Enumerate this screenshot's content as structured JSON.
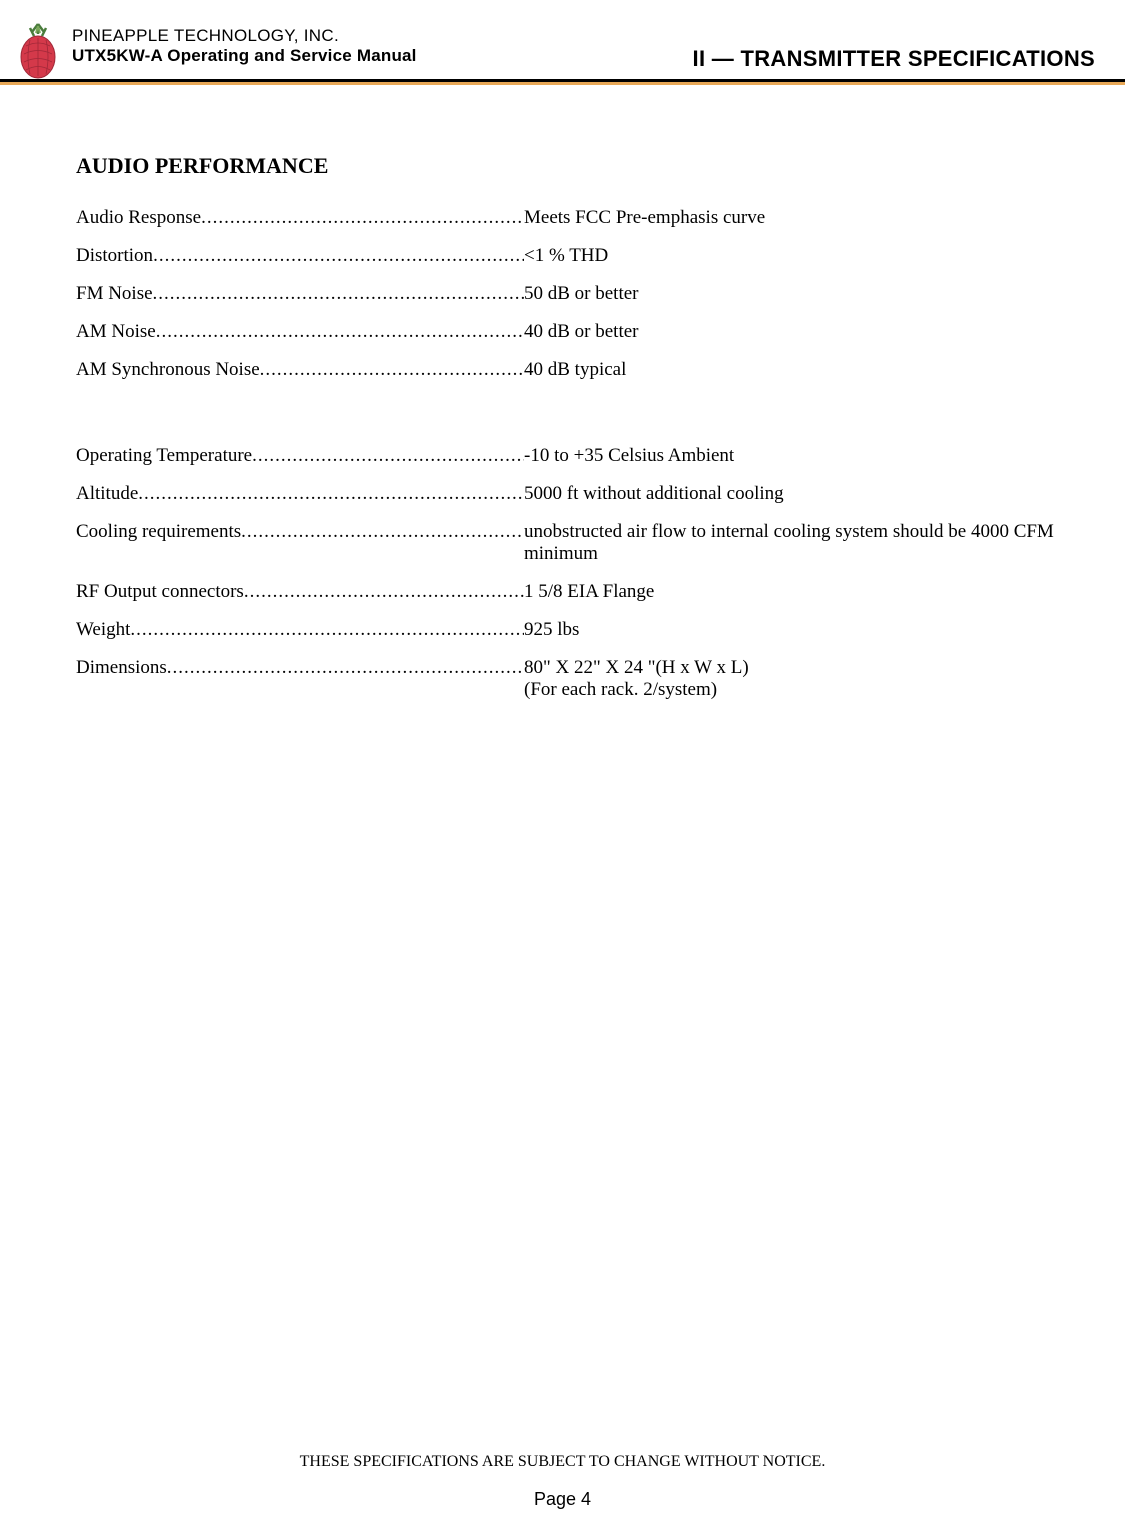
{
  "header": {
    "company": "PINEAPPLE TECHNOLOGY, INC.",
    "manual": "UTX5KW-A Operating and Service Manual",
    "chapter": "II — TRANSMITTER SPECIFICATIONS"
  },
  "section_title": "AUDIO PERFORMANCE",
  "specs_group1": [
    {
      "label": "Audio Response",
      "value": "Meets FCC Pre-emphasis curve"
    },
    {
      "label": "Distortion",
      "value": "<1 % THD"
    },
    {
      "label": "FM Noise",
      "value": "50 dB or better"
    },
    {
      "label": "AM Noise",
      "value": "40 dB or better"
    },
    {
      "label": "AM Synchronous Noise",
      "value": "40 dB typical"
    }
  ],
  "specs_group2": [
    {
      "label": "Operating Temperature",
      "value": "-10 to +35 Celsius Ambient"
    },
    {
      "label": "Altitude",
      "value": "5000 ft without additional cooling"
    },
    {
      "label": "Cooling requirements",
      "value": "unobstructed air flow to internal cooling system should be 4000 CFM minimum"
    },
    {
      "label": "RF Output connectors",
      "value": "1 5/8 EIA Flange"
    },
    {
      "label": "Weight",
      "value": "925 lbs"
    },
    {
      "label": "Dimensions",
      "value": "80\" X 22\" X 24 \"(H x W x L)\n(For each rack. 2/system)"
    }
  ],
  "footer": {
    "disclaimer": "THESE SPECIFICATIONS ARE SUBJECT TO CHANGE WITHOUT NOTICE.",
    "page": "Page 4"
  },
  "colors": {
    "orange_bar": "#e8a857",
    "text": "#000000",
    "background": "#ffffff"
  }
}
